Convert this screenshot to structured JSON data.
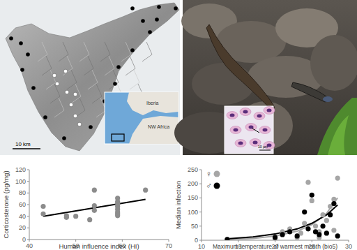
{
  "chart_data": [
    {
      "type": "scatter",
      "x_label": "Human influence index (HI)",
      "y_label": "Corticosterone (pg/mg)",
      "xlim": [
        40,
        70
      ],
      "xticks": [
        40,
        50,
        60,
        70
      ],
      "ylim": [
        0,
        120
      ],
      "yticks": [
        0,
        20,
        40,
        60,
        80,
        100,
        120
      ],
      "grid": false,
      "series": [
        {
          "color": "#8c8c8c",
          "marker": "circle",
          "x": [
            43,
            43,
            48,
            48,
            50,
            53,
            54,
            54,
            54,
            59,
            59,
            59,
            59,
            59,
            59,
            59,
            59,
            65
          ],
          "values": [
            57,
            44,
            38,
            41,
            40,
            34,
            85,
            58,
            50,
            71,
            65,
            62,
            57,
            52,
            47,
            44,
            41,
            85
          ]
        },
        {
          "type": "line",
          "color": "#000000",
          "line_style": "solid",
          "x": [
            43,
            65
          ],
          "values": [
            40,
            69
          ]
        }
      ]
    },
    {
      "type": "scatter",
      "x_label": "Maximum temperature of warmest month (bio5)",
      "y_label": "Median infection",
      "xlim": [
        10,
        30
      ],
      "xticks": [
        10,
        15,
        20,
        25,
        30
      ],
      "ylim": [
        0,
        250
      ],
      "yticks": [
        0,
        50,
        100,
        150,
        200,
        250
      ],
      "grid": false,
      "legend": "top-left",
      "series": [
        {
          "name": "♀",
          "color": "#a6a6a6",
          "marker": "circle",
          "x": [
            13.5,
            20,
            21,
            22,
            23,
            23.5,
            24,
            24.5,
            25,
            25.5,
            26,
            26,
            26.5,
            27,
            27.5,
            28,
            28,
            28.5
          ],
          "values": [
            2,
            5,
            30,
            40,
            10,
            25,
            60,
            205,
            140,
            50,
            30,
            10,
            90,
            70,
            120,
            145,
            35,
            220
          ]
        },
        {
          "name": "♂",
          "color": "#000000",
          "marker": "circle",
          "x": [
            13.5,
            20,
            21,
            22,
            23,
            24,
            24.5,
            25,
            25.5,
            26,
            26.5,
            27,
            27.5,
            28,
            28.5
          ],
          "values": [
            3,
            10,
            20,
            30,
            15,
            100,
            40,
            160,
            30,
            20,
            50,
            25,
            90,
            130,
            15
          ]
        },
        {
          "type": "line",
          "color": "#a6a6a6",
          "line_style": "solid",
          "x": [
            13.5,
            17,
            20,
            23,
            25,
            27,
            28.5
          ],
          "values": [
            2,
            6,
            15,
            32,
            55,
            95,
            150
          ]
        },
        {
          "type": "line",
          "color": "#000000",
          "line_style": "solid",
          "x": [
            13.5,
            17,
            20,
            23,
            25,
            27,
            28.5
          ],
          "values": [
            5,
            12,
            22,
            40,
            60,
            90,
            125
          ]
        }
      ]
    }
  ],
  "panels": {
    "map": {
      "scale_label": "10 km",
      "inset_labels": [
        "Iberia",
        "NW Africa"
      ]
    },
    "micrograph": {
      "scale_label": "10 µm"
    }
  }
}
